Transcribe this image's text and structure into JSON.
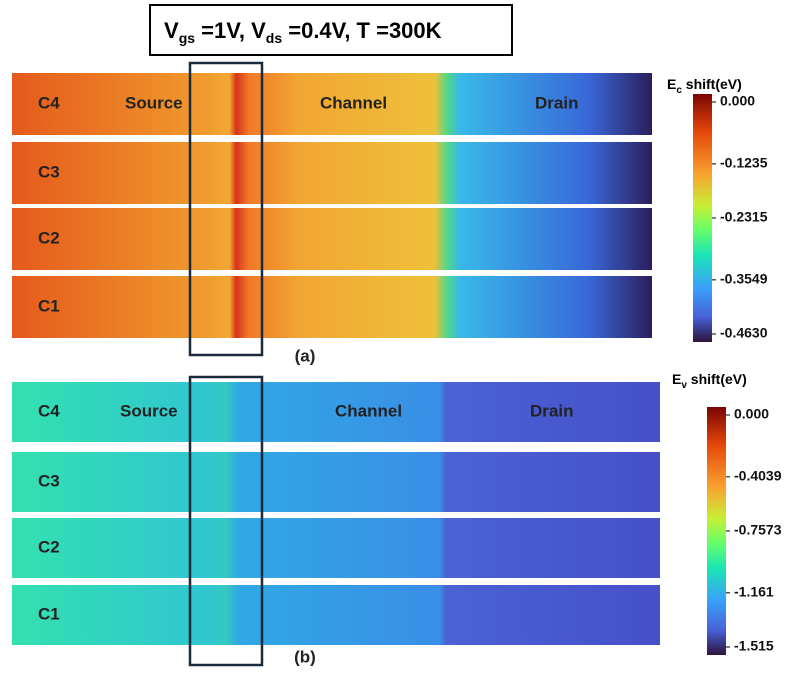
{
  "title": [
    "V",
    "gs",
    " =1V,  V",
    "ds",
    " =0.4V,  T =300K"
  ],
  "panels": [
    {
      "label": "(a)",
      "colorbar": {
        "title": [
          "E",
          "c",
          " shift(eV)"
        ],
        "lim": [
          -0.463,
          0
        ],
        "ticks": [
          {
            "value": 0,
            "label": "0.000"
          },
          -0.1235,
          -0.2315,
          -0.3549,
          {
            "value": -0.463,
            "label": "-0.4630"
          }
        ]
      },
      "rows": [
        {
          "name": "C4",
          "regions": [
            "Source",
            "Channel",
            "Drain"
          ]
        },
        {
          "name": "C3"
        },
        {
          "name": "C2"
        },
        {
          "name": "C1"
        }
      ]
    },
    {
      "label": "(b)",
      "colorbar": {
        "title": [
          "E",
          "v",
          " shift(eV)"
        ],
        "lim": [
          -1.515,
          0
        ],
        "ticks": [
          {
            "value": 0,
            "label": "0.000"
          },
          -0.4039,
          -0.7573,
          -1.161,
          -1.515
        ]
      },
      "rows": [
        {
          "name": "C4",
          "regions": [
            "Source",
            "Channel",
            "Drain"
          ]
        },
        {
          "name": "C3"
        },
        {
          "name": "C2"
        },
        {
          "name": "C1"
        }
      ]
    }
  ]
}
